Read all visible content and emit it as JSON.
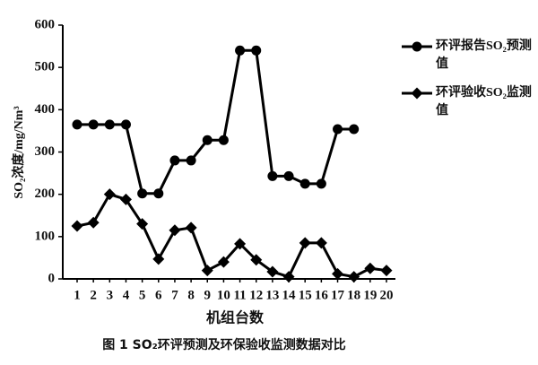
{
  "chart_data": {
    "type": "line",
    "ylabel": "SO₂浓度/mg/Nm³",
    "xlabel": "机组台数",
    "caption": "图 1   SO₂环评预测及环保验收监测数据对比",
    "categories": [
      "1",
      "2",
      "3",
      "4",
      "5",
      "6",
      "7",
      "8",
      "9",
      "10",
      "11",
      "12",
      "13",
      "14",
      "15",
      "16",
      "17",
      "18",
      "19",
      "20"
    ],
    "ylim": [
      0,
      600
    ],
    "yticks": [
      0,
      100,
      200,
      300,
      400,
      500,
      600
    ],
    "series": [
      {
        "name": "环评报告SO₂预测值",
        "color": "#000000",
        "marker": "circle",
        "values": [
          365,
          365,
          365,
          365,
          202,
          202,
          280,
          280,
          328,
          328,
          540,
          540,
          243,
          243,
          225,
          225,
          354,
          354,
          null,
          null
        ]
      },
      {
        "name": "环评验收SO₂监测值",
        "color": "#000000",
        "marker": "diamond",
        "values": [
          125,
          133,
          200,
          188,
          130,
          47,
          115,
          121,
          20,
          40,
          83,
          45,
          17,
          5,
          85,
          85,
          12,
          5,
          25,
          20
        ]
      }
    ]
  }
}
